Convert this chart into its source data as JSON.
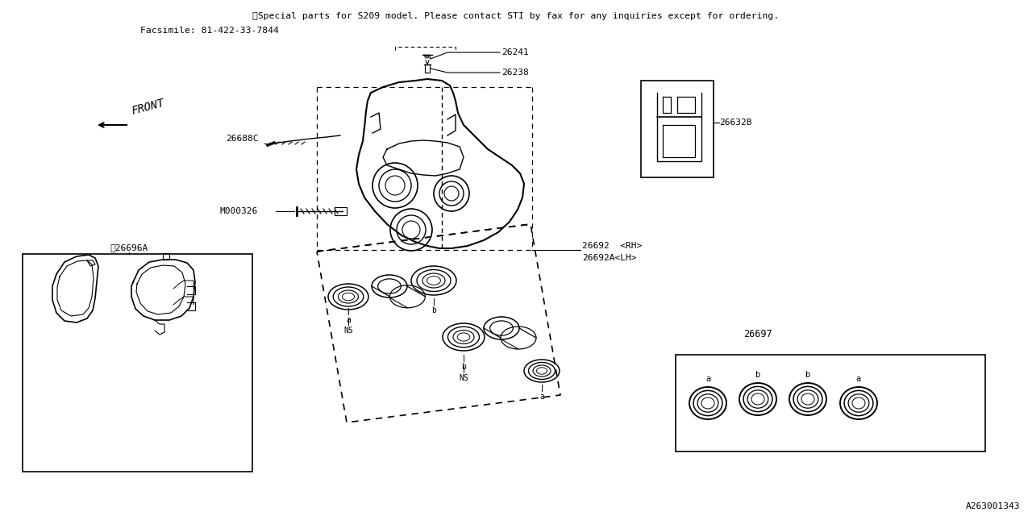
{
  "bg_color": "#ffffff",
  "line_color": "#000000",
  "title_line1": "※Special parts for S209 model. Please contact STI by fax for any inquiries except for ordering.",
  "title_line2": "Facsimile: 81-422-33-7844",
  "footer_text": "A263001343",
  "font_family": "monospace",
  "caliper_label": "26692  <RH>",
  "caliper_label2": "26692A<LH>",
  "pad_label": "※26696A",
  "clip_label": "26632B",
  "seal_label": "26697",
  "part26241": "26241",
  "part26238": "26238",
  "part26688C": "26688C",
  "partM000326": "M000326"
}
